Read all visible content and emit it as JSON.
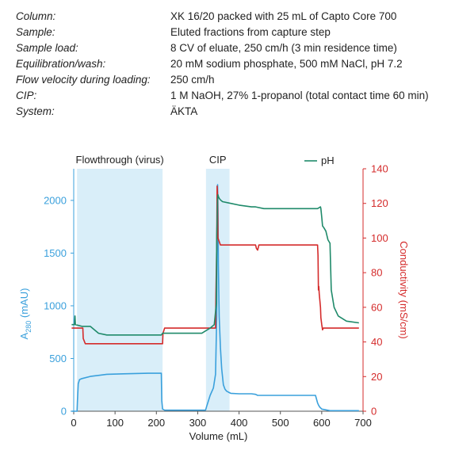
{
  "parameters": [
    {
      "label": "Column:",
      "value": "XK 16/20 packed with 25 mL of Capto Core 700"
    },
    {
      "label": "Sample:",
      "value": "Eluted fractions from capture step"
    },
    {
      "label": "Sample load:",
      "value": "8 CV of eluate, 250 cm/h (3 min residence time)"
    },
    {
      "label": "Equilibration/wash:",
      "value": "20 mM sodium phosphate, 500 mM NaCl, pH 7.2"
    },
    {
      "label": "Flow velocity during loading:",
      "value": "250 cm/h"
    },
    {
      "label": "CIP:",
      "value": "1 M NaOH, 27% 1-propanol (total contact time 60 min)"
    },
    {
      "label": "System:",
      "value": "ÄKTA"
    }
  ],
  "colors": {
    "a280": "#3aa0dc",
    "conductivity": "#d42b2b",
    "ph": "#1f8a6a",
    "region": "#d9eef9",
    "axis": "#555555"
  },
  "chart_data": {
    "type": "line",
    "xlabel": "Volume (mL)",
    "ylabel_left": {
      "main": "A",
      "sub": "280",
      "rest": " (mAU)"
    },
    "ylabel_right": "Conductivity (mS/cm)",
    "xlim": [
      0,
      700
    ],
    "ylim_left": [
      0,
      2300
    ],
    "ylim_right": [
      0,
      140
    ],
    "x_ticks": [
      0,
      100,
      200,
      300,
      400,
      500,
      600,
      700
    ],
    "y_left_ticks": [
      0,
      500,
      1000,
      1500,
      2000
    ],
    "y_right_ticks": [
      0,
      20,
      40,
      60,
      80,
      100,
      120,
      140
    ],
    "grid": false,
    "legend": {
      "position": "top-right",
      "label": "pH"
    },
    "regions": [
      {
        "label": "Flowthrough (virus)",
        "x_start": 8,
        "x_end": 215
      },
      {
        "label": "CIP",
        "x_start": 320,
        "x_end": 377
      }
    ],
    "series": [
      {
        "axis": "left",
        "color": "#3aa0dc",
        "x": [
          -5,
          5,
          8,
          9,
          11,
          14,
          20,
          40,
          80,
          120,
          180,
          212,
          213,
          215,
          220,
          300,
          319,
          322,
          330,
          338,
          343,
          346,
          347,
          348,
          349,
          350,
          352,
          355,
          358,
          362,
          366,
          370,
          375,
          380,
          400,
          430,
          440,
          445,
          480,
          560,
          585,
          590,
          592,
          595,
          600,
          620,
          680,
          690
        ],
        "y": [
          0,
          0,
          0,
          100,
          260,
          300,
          310,
          330,
          350,
          355,
          360,
          360,
          100,
          20,
          10,
          10,
          10,
          50,
          150,
          220,
          350,
          900,
          1800,
          2150,
          1900,
          1400,
          900,
          600,
          400,
          250,
          210,
          190,
          180,
          170,
          165,
          165,
          160,
          150,
          150,
          150,
          150,
          80,
          60,
          40,
          20,
          5,
          5,
          5
        ]
      },
      {
        "axis": "right",
        "color": "#d42b2b",
        "x": [
          -5,
          22,
          23,
          28,
          215,
          216,
          220,
          300,
          343,
          344,
          346,
          347,
          348,
          349,
          352,
          355,
          358,
          440,
          442,
          445,
          447,
          448,
          590,
          591,
          592,
          593,
          594,
          595,
          597,
          598,
          600,
          602,
          604,
          610,
          620,
          690
        ],
        "y": [
          48,
          48,
          42,
          39,
          39,
          45,
          48,
          48,
          48,
          68,
          95,
          130,
          125,
          100,
          98,
          96,
          96,
          96,
          94,
          93,
          95,
          96,
          96,
          90,
          70,
          72,
          68,
          65,
          60,
          54,
          50,
          47,
          48,
          48,
          48,
          48
        ]
      },
      {
        "axis": "right",
        "color": "#1f8a6a",
        "x": [
          -5,
          2,
          3,
          4,
          20,
          40,
          60,
          80,
          140,
          212,
          215,
          220,
          310,
          330,
          340,
          345,
          346,
          347,
          348,
          349,
          350,
          352,
          355,
          360,
          380,
          400,
          430,
          440,
          460,
          590,
          597,
          598,
          600,
          602,
          605,
          610,
          615,
          620,
          623,
          630,
          640,
          660,
          690
        ],
        "y": [
          50,
          50,
          55,
          50,
          49,
          49,
          45,
          44,
          44,
          44,
          45,
          45,
          45,
          48,
          50,
          62,
          100,
          110,
          122,
          125,
          124,
          123,
          122,
          121,
          120,
          119,
          118,
          118,
          117,
          117,
          118,
          117,
          112,
          107,
          106,
          104,
          99,
          97,
          70,
          60,
          55,
          52,
          51
        ]
      }
    ]
  }
}
